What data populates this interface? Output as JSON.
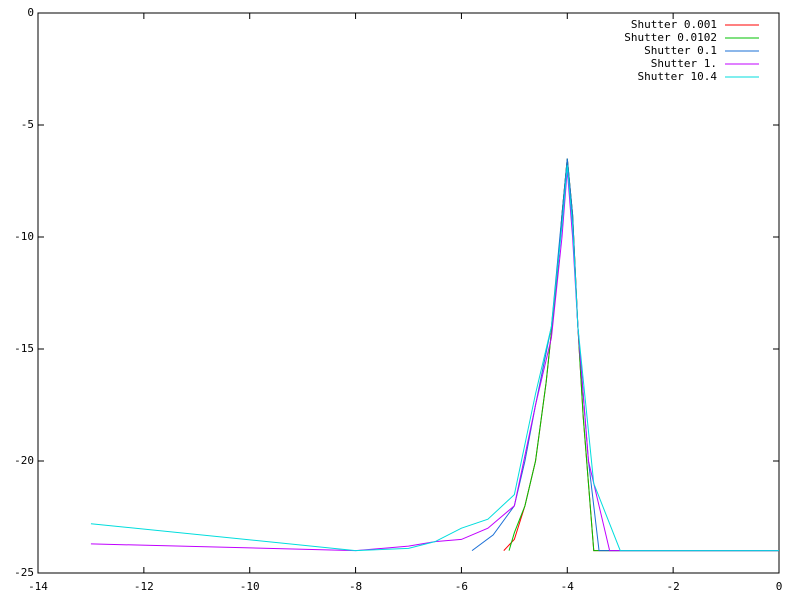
{
  "chart_data": {
    "type": "line",
    "xlim": [
      -14,
      0
    ],
    "ylim": [
      -25,
      0
    ],
    "xticks": [
      -14,
      -12,
      -10,
      -8,
      -6,
      -4,
      -2,
      0
    ],
    "yticks": [
      0,
      -5,
      -10,
      -15,
      -20,
      -25
    ],
    "legend": "upper right",
    "series": [
      {
        "name": "Shutter 0.001",
        "color": "#ff0000",
        "x": [
          -5.2,
          -5.0,
          -4.8,
          -4.6,
          -4.4,
          -4.2,
          -4.1,
          -4.0,
          -3.9,
          -3.8,
          -3.7,
          -3.6,
          -3.5,
          0
        ],
        "values": [
          -24,
          -23.5,
          -22,
          -20,
          -16.5,
          -12,
          -9,
          -6.5,
          -9,
          -14,
          -18,
          -21,
          -24,
          -24
        ]
      },
      {
        "name": "Shutter 0.0102",
        "color": "#00c000",
        "x": [
          -5.1,
          -5.0,
          -4.8,
          -4.6,
          -4.4,
          -4.2,
          -4.1,
          -4.0,
          -3.9,
          -3.8,
          -3.7,
          -3.6,
          -3.5,
          0
        ],
        "values": [
          -24,
          -23.2,
          -22,
          -20,
          -16.5,
          -12,
          -9,
          -6.5,
          -9,
          -14,
          -18,
          -21,
          -24,
          -24
        ]
      },
      {
        "name": "Shutter 0.1",
        "color": "#1a6fd6",
        "x": [
          -5.8,
          -5.4,
          -5.0,
          -4.8,
          -4.6,
          -4.3,
          -4.1,
          -4.0,
          -3.9,
          -3.8,
          -3.6,
          -3.4,
          0
        ],
        "values": [
          -24,
          -23.3,
          -22,
          -20,
          -17.5,
          -14,
          -9,
          -6.5,
          -9,
          -14,
          -20,
          -24,
          -24
        ]
      },
      {
        "name": "Shutter 1.",
        "color": "#c000ff",
        "x": [
          -13,
          -8,
          -7,
          -6.5,
          -6,
          -5.5,
          -5.0,
          -4.6,
          -4.3,
          -4.1,
          -4.0,
          -3.9,
          -3.8,
          -3.6,
          -3.2,
          0
        ],
        "values": [
          -23.7,
          -24,
          -23.8,
          -23.6,
          -23.5,
          -23,
          -22,
          -17.5,
          -14.5,
          -10,
          -7,
          -10,
          -14,
          -20,
          -24,
          -24
        ]
      },
      {
        "name": "Shutter 10.4",
        "color": "#00dddd",
        "x": [
          -13,
          -8,
          -7,
          -6.5,
          -6,
          -5.5,
          -5.0,
          -4.6,
          -4.3,
          -4.1,
          -4.0,
          -3.9,
          -3.8,
          -3.5,
          -3.0,
          0
        ],
        "values": [
          -22.8,
          -24,
          -23.9,
          -23.6,
          -23,
          -22.6,
          -21.5,
          -17,
          -14,
          -9.5,
          -6.8,
          -9.5,
          -14,
          -21,
          -24,
          -24
        ]
      }
    ]
  }
}
